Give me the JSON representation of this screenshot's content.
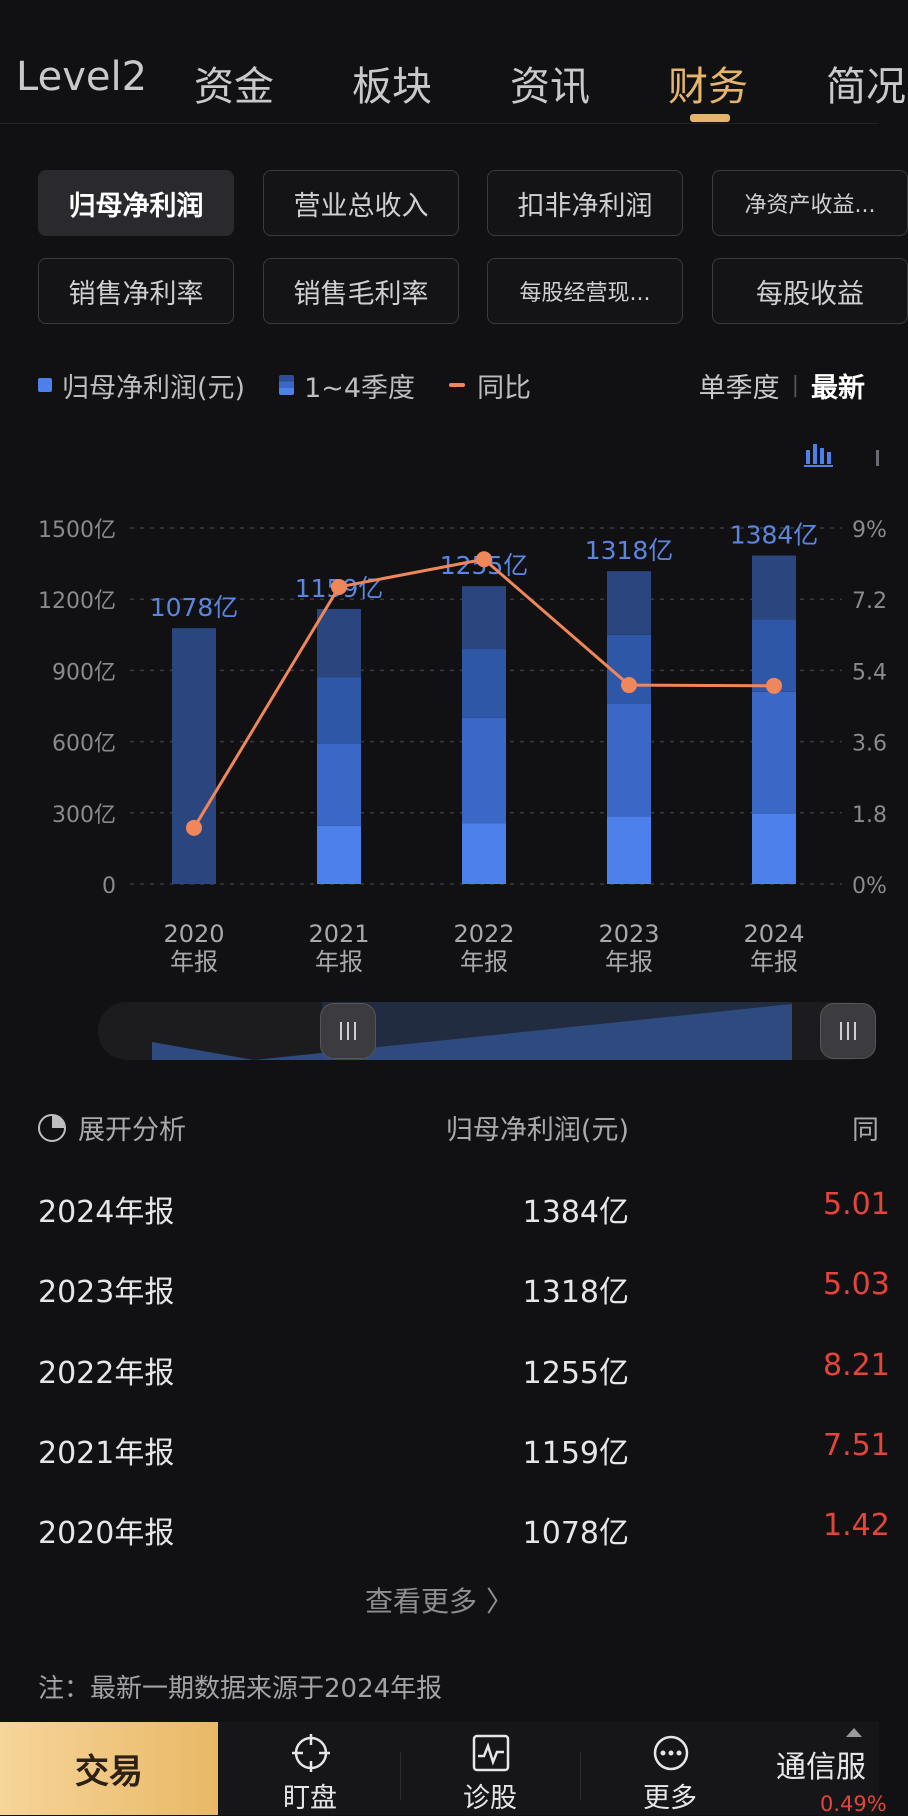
{
  "top_tabs": [
    {
      "label": "Level2",
      "active": false
    },
    {
      "label": "资金",
      "active": false
    },
    {
      "label": "板块",
      "active": false
    },
    {
      "label": "资讯",
      "active": false
    },
    {
      "label": "财务",
      "active": true
    },
    {
      "label": "简况",
      "active": false
    }
  ],
  "metric_buttons": [
    {
      "label": "归母净利润",
      "active": true
    },
    {
      "label": "营业总收入",
      "active": false
    },
    {
      "label": "扣非净利润",
      "active": false
    },
    {
      "label": "净资产收益...",
      "active": false
    },
    {
      "label": "销售净利率",
      "active": false
    },
    {
      "label": "销售毛利率",
      "active": false
    },
    {
      "label": "每股经营现...",
      "active": false
    },
    {
      "label": "每股收益",
      "active": false
    }
  ],
  "legend": {
    "bar": "归母净利润(元)",
    "stack": "1~4季度",
    "line": "同比"
  },
  "period": {
    "single_quarter": "单季度",
    "latest": "最新"
  },
  "colors": {
    "accent": "#e4b56b",
    "line": "#f0875a",
    "bar_label": "#5b86e0",
    "q1": "#4d80ea",
    "q2": "#3b67c6",
    "q3": "#2f57a8",
    "q4": "#2b467f",
    "up": "#e4453a"
  },
  "icons": {
    "chart_type": "bar-chart-icon",
    "expand": "pie-chart-icon",
    "nav": [
      "crosshair-icon",
      "pulse-chart-icon",
      "more-dots-icon"
    ]
  },
  "chart_data": {
    "type": "bar",
    "categories": [
      "2020\n年报",
      "2021\n年报",
      "2022\n年报",
      "2023\n年报",
      "2024\n年报"
    ],
    "values": [
      1078,
      1159,
      1255,
      1318,
      1384
    ],
    "value_labels": [
      "1078亿",
      "1159亿",
      "1255亿",
      "1318亿",
      "1384亿"
    ],
    "stacks": [
      [
        1078
      ],
      [
        245,
        345,
        280,
        289
      ],
      [
        255,
        445,
        290,
        265
      ],
      [
        285,
        475,
        290,
        268
      ],
      [
        295,
        515,
        305,
        269
      ]
    ],
    "yoy_series": {
      "name": "同比",
      "values": [
        1.42,
        7.51,
        8.21,
        5.03,
        5.01
      ]
    },
    "ylim": [
      0,
      1500
    ],
    "y_ticks": [
      "0",
      "300亿",
      "600亿",
      "900亿",
      "1200亿",
      "1500亿"
    ],
    "y2lim": [
      0,
      9
    ],
    "y2_ticks": [
      "0%",
      "1.8",
      "3.6",
      "5.4",
      "7.2",
      "9%"
    ],
    "grid": true
  },
  "table": {
    "expand_label": "展开分析",
    "col_value": "归母净利润(元)",
    "col_yoy": "同",
    "rows": [
      {
        "name": "2024年报",
        "value": "1384亿",
        "yoy": "5.01"
      },
      {
        "name": "2023年报",
        "value": "1318亿",
        "yoy": "5.03"
      },
      {
        "name": "2022年报",
        "value": "1255亿",
        "yoy": "8.21"
      },
      {
        "name": "2021年报",
        "value": "1159亿",
        "yoy": "7.51"
      },
      {
        "name": "2020年报",
        "value": "1078亿",
        "yoy": "1.42"
      }
    ]
  },
  "more_label": "查看更多 〉",
  "note": "注：最新一期数据来源于2024年报",
  "bottom_nav": {
    "trade": "交易",
    "items": [
      "盯盘",
      "诊股",
      "更多"
    ],
    "telecom": "通信服",
    "telecom_pct": "0.49%"
  }
}
